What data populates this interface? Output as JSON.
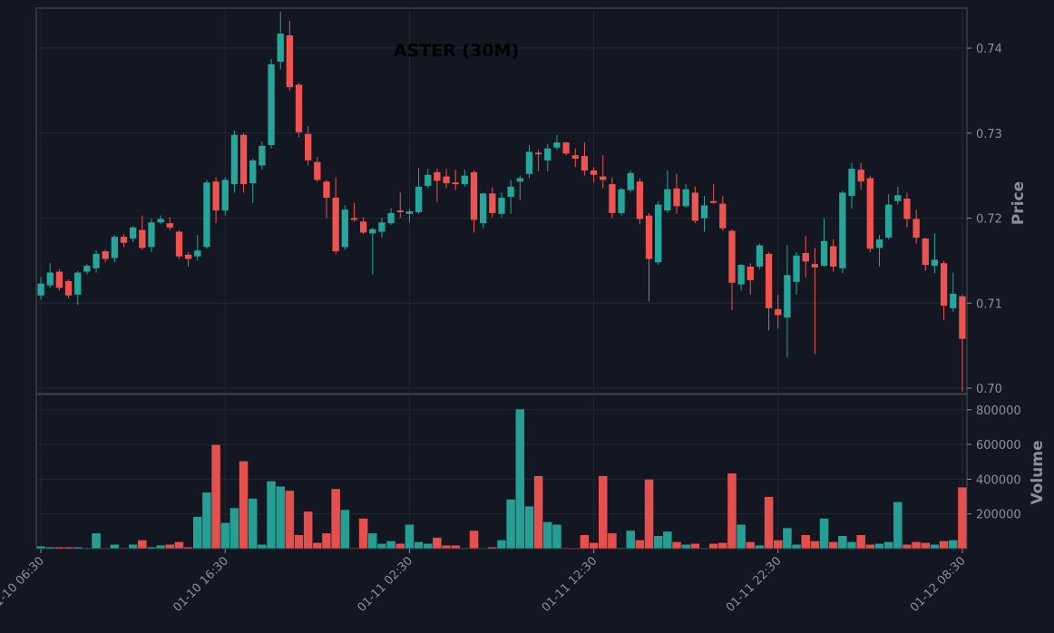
{
  "chart_data": {
    "type": "candlestick",
    "title": "ASTER (30M)",
    "ylabel": "Price",
    "y2label": "Volume",
    "up_color": "#26a69a",
    "down_color": "#ef5350",
    "grid": true,
    "categories": [
      "01-10 06:30",
      null,
      null,
      null,
      null,
      null,
      null,
      null,
      null,
      null,
      null,
      null,
      null,
      null,
      null,
      null,
      null,
      null,
      null,
      null,
      "01-10 16:30",
      null,
      null,
      null,
      null,
      null,
      null,
      null,
      null,
      null,
      null,
      null,
      null,
      null,
      null,
      null,
      null,
      null,
      null,
      null,
      "01-11 02:30",
      null,
      null,
      null,
      null,
      null,
      null,
      null,
      null,
      null,
      null,
      null,
      null,
      null,
      null,
      null,
      null,
      null,
      null,
      null,
      "01-11 12:30",
      null,
      null,
      null,
      null,
      null,
      null,
      null,
      null,
      null,
      null,
      null,
      null,
      null,
      null,
      null,
      null,
      null,
      null,
      null,
      "01-11 22:30",
      null,
      null,
      null,
      null,
      null,
      null,
      null,
      null,
      null,
      null,
      null,
      null,
      null,
      null,
      null,
      null,
      null,
      null,
      null,
      "01-12 08:30"
    ],
    "open": [
      0.7109,
      0.7121,
      0.7137,
      0.7126,
      0.711,
      0.7137,
      0.7141,
      0.7161,
      0.7153,
      0.7178,
      0.7176,
      0.7186,
      0.7166,
      0.7195,
      0.7194,
      0.7184,
      0.7157,
      0.7155,
      0.7166,
      0.7243,
      0.7209,
      0.724,
      0.7298,
      0.7241,
      0.7262,
      0.7286,
      0.7384,
      0.7415,
      0.7357,
      0.7299,
      0.7266,
      0.7243,
      0.7224,
      0.7166,
      0.72,
      0.7196,
      0.7182,
      0.7184,
      0.7194,
      0.7209,
      0.7205,
      0.7207,
      0.7238,
      0.7254,
      0.7249,
      0.7242,
      0.724,
      0.7254,
      0.7194,
      0.7229,
      0.7205,
      0.7225,
      0.7243,
      0.7252,
      0.7277,
      0.7268,
      0.7283,
      0.7289,
      0.7274,
      0.7273,
      0.7256,
      0.7249,
      0.724,
      0.7206,
      0.7233,
      0.7243,
      0.7203,
      0.7148,
      0.7209,
      0.7235,
      0.7214,
      0.723,
      0.72,
      0.722,
      0.7217,
      0.7185,
      0.7122,
      0.7143,
      0.7143,
      0.7158,
      0.7093,
      0.7083,
      0.7125,
      0.7159,
      0.7146,
      0.7144,
      0.7167,
      0.7141,
      0.7226,
      0.7257,
      0.7247,
      0.7165,
      0.7177,
      0.722,
      0.7223,
      0.7199,
      0.7176,
      0.7144,
      0.7147,
      0.7094,
      0.7108
    ],
    "high": [
      0.7131,
      0.7147,
      0.714,
      0.7128,
      0.7138,
      0.7146,
      0.7162,
      0.7163,
      0.718,
      0.7181,
      0.7191,
      0.7203,
      0.7199,
      0.7203,
      0.7201,
      0.7186,
      0.716,
      0.718,
      0.7245,
      0.7248,
      0.7248,
      0.7303,
      0.73,
      0.727,
      0.729,
      0.7387,
      0.7443,
      0.7432,
      0.7359,
      0.7308,
      0.7272,
      0.7245,
      0.7248,
      0.7215,
      0.7218,
      0.7201,
      0.7189,
      0.72,
      0.7212,
      0.723,
      0.7211,
      0.7259,
      0.7258,
      0.7258,
      0.7258,
      0.7257,
      0.7257,
      0.7256,
      0.723,
      0.7236,
      0.723,
      0.7245,
      0.725,
      0.7286,
      0.728,
      0.7287,
      0.7298,
      0.729,
      0.7282,
      0.7289,
      0.726,
      0.7274,
      0.7248,
      0.7236,
      0.7256,
      0.7247,
      0.7206,
      0.722,
      0.7256,
      0.7252,
      0.724,
      0.7237,
      0.7226,
      0.724,
      0.7226,
      0.7187,
      0.7146,
      0.7147,
      0.717,
      0.716,
      0.711,
      0.7168,
      0.716,
      0.7179,
      0.7165,
      0.72,
      0.7175,
      0.7232,
      0.7265,
      0.7265,
      0.725,
      0.718,
      0.7228,
      0.7237,
      0.723,
      0.721,
      0.7177,
      0.7182,
      0.715,
      0.7136,
      0.711
    ],
    "low": [
      0.7104,
      0.7118,
      0.7115,
      0.7106,
      0.7098,
      0.7134,
      0.7136,
      0.7148,
      0.7148,
      0.7166,
      0.7172,
      0.7163,
      0.716,
      0.7193,
      0.7186,
      0.7152,
      0.7143,
      0.715,
      0.7164,
      0.7194,
      0.7203,
      0.723,
      0.723,
      0.7218,
      0.7257,
      0.7282,
      0.7375,
      0.735,
      0.7295,
      0.7262,
      0.7243,
      0.72,
      0.7158,
      0.7163,
      0.7196,
      0.7181,
      0.7134,
      0.7177,
      0.7192,
      0.72,
      0.7195,
      0.7205,
      0.7235,
      0.7219,
      0.7235,
      0.7233,
      0.7237,
      0.7183,
      0.7188,
      0.7201,
      0.7201,
      0.7205,
      0.7221,
      0.7247,
      0.7255,
      0.7255,
      0.728,
      0.7274,
      0.726,
      0.725,
      0.7242,
      0.7235,
      0.72,
      0.7203,
      0.723,
      0.7193,
      0.7102,
      0.7145,
      0.7206,
      0.7205,
      0.7212,
      0.7194,
      0.7184,
      0.7217,
      0.7185,
      0.7092,
      0.7115,
      0.711,
      0.714,
      0.7068,
      0.707,
      0.7036,
      0.711,
      0.713,
      0.704,
      0.7143,
      0.7137,
      0.7135,
      0.7211,
      0.7233,
      0.716,
      0.7143,
      0.7175,
      0.7216,
      0.7189,
      0.717,
      0.7138,
      0.7135,
      0.708,
      0.709,
      0.6996
    ],
    "close": [
      0.7123,
      0.7136,
      0.7118,
      0.7109,
      0.7136,
      0.7144,
      0.7158,
      0.7152,
      0.7178,
      0.7171,
      0.7189,
      0.7165,
      0.7195,
      0.7199,
      0.7189,
      0.7155,
      0.7152,
      0.7162,
      0.7242,
      0.7209,
      0.7245,
      0.7298,
      0.724,
      0.7268,
      0.7285,
      0.7381,
      0.7417,
      0.7354,
      0.7301,
      0.7268,
      0.7245,
      0.7224,
      0.7161,
      0.721,
      0.7198,
      0.7183,
      0.7187,
      0.7195,
      0.7206,
      0.7207,
      0.7208,
      0.7237,
      0.7251,
      0.7244,
      0.7241,
      0.724,
      0.725,
      0.7198,
      0.7229,
      0.7206,
      0.7224,
      0.7237,
      0.7247,
      0.7278,
      0.7275,
      0.7282,
      0.7289,
      0.7276,
      0.727,
      0.7256,
      0.7251,
      0.7245,
      0.7206,
      0.7234,
      0.7253,
      0.7199,
      0.7152,
      0.7216,
      0.7234,
      0.7214,
      0.7234,
      0.7197,
      0.7215,
      0.7218,
      0.7188,
      0.7124,
      0.7145,
      0.7127,
      0.7168,
      0.7094,
      0.7086,
      0.7133,
      0.7156,
      0.7149,
      0.7142,
      0.7173,
      0.7143,
      0.723,
      0.7258,
      0.7243,
      0.7164,
      0.7175,
      0.7216,
      0.7227,
      0.7199,
      0.7177,
      0.7145,
      0.7151,
      0.7097,
      0.7111,
      0.7058
    ],
    "volume": [
      15000,
      10000,
      10000,
      10000,
      10000,
      5000,
      90000,
      5000,
      25000,
      5000,
      25000,
      50000,
      10000,
      20000,
      25000,
      40000,
      10000,
      185000,
      325000,
      600000,
      150000,
      235000,
      505000,
      290000,
      25000,
      390000,
      360000,
      335000,
      80000,
      215000,
      35000,
      90000,
      345000,
      225000,
      5000,
      175000,
      90000,
      30000,
      45000,
      30000,
      140000,
      40000,
      30000,
      65000,
      20000,
      20000,
      5000,
      105000,
      5000,
      10000,
      50000,
      285000,
      805000,
      245000,
      420000,
      155000,
      140000,
      5000,
      5000,
      80000,
      35000,
      420000,
      90000,
      5000,
      105000,
      50000,
      400000,
      75000,
      100000,
      40000,
      25000,
      30000,
      5000,
      30000,
      35000,
      435000,
      140000,
      40000,
      20000,
      300000,
      50000,
      120000,
      25000,
      80000,
      45000,
      175000,
      40000,
      75000,
      40000,
      80000,
      25000,
      30000,
      40000,
      270000,
      25000,
      40000,
      35000,
      25000,
      45000,
      50000,
      355000
    ],
    "ylim": [
      0.69936,
      0.7447
    ],
    "yticks": [
      {
        "value": 0.7,
        "label": "0.70"
      },
      0.71,
      0.72,
      0.73,
      0.74
    ],
    "y2lim": [
      0,
      888000
    ],
    "y2ticks": [
      200000,
      400000,
      600000,
      800000
    ]
  }
}
